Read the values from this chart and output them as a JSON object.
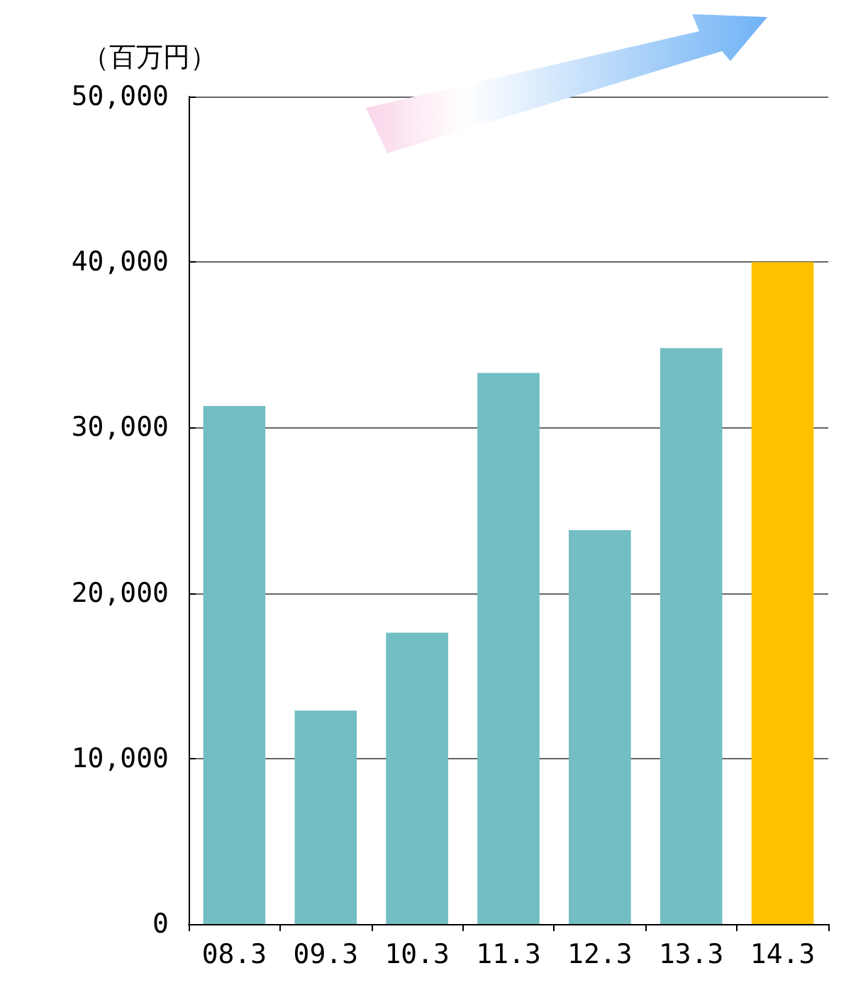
{
  "chart_data": {
    "type": "bar",
    "ylabel": "（百万円）",
    "categories": [
      "08.3",
      "09.3",
      "10.3",
      "11.3",
      "12.3",
      "13.3",
      "14.3"
    ],
    "values": [
      31300,
      12900,
      17600,
      33300,
      23800,
      34800,
      40000
    ],
    "colors": [
      "#72bec3",
      "#72bec3",
      "#72bec3",
      "#72bec3",
      "#72bec3",
      "#72bec3",
      "#ffc000"
    ],
    "ylim": [
      0,
      50000
    ],
    "yticks": [
      0,
      {
        "value": 10000,
        "label": "10,000"
      },
      {
        "value": 20000,
        "label": "20,000"
      },
      {
        "value": 30000,
        "label": "30,000"
      },
      {
        "value": 40000,
        "label": "40,000"
      },
      {
        "value": 50000,
        "label": "50,000"
      }
    ],
    "grid": "y"
  }
}
